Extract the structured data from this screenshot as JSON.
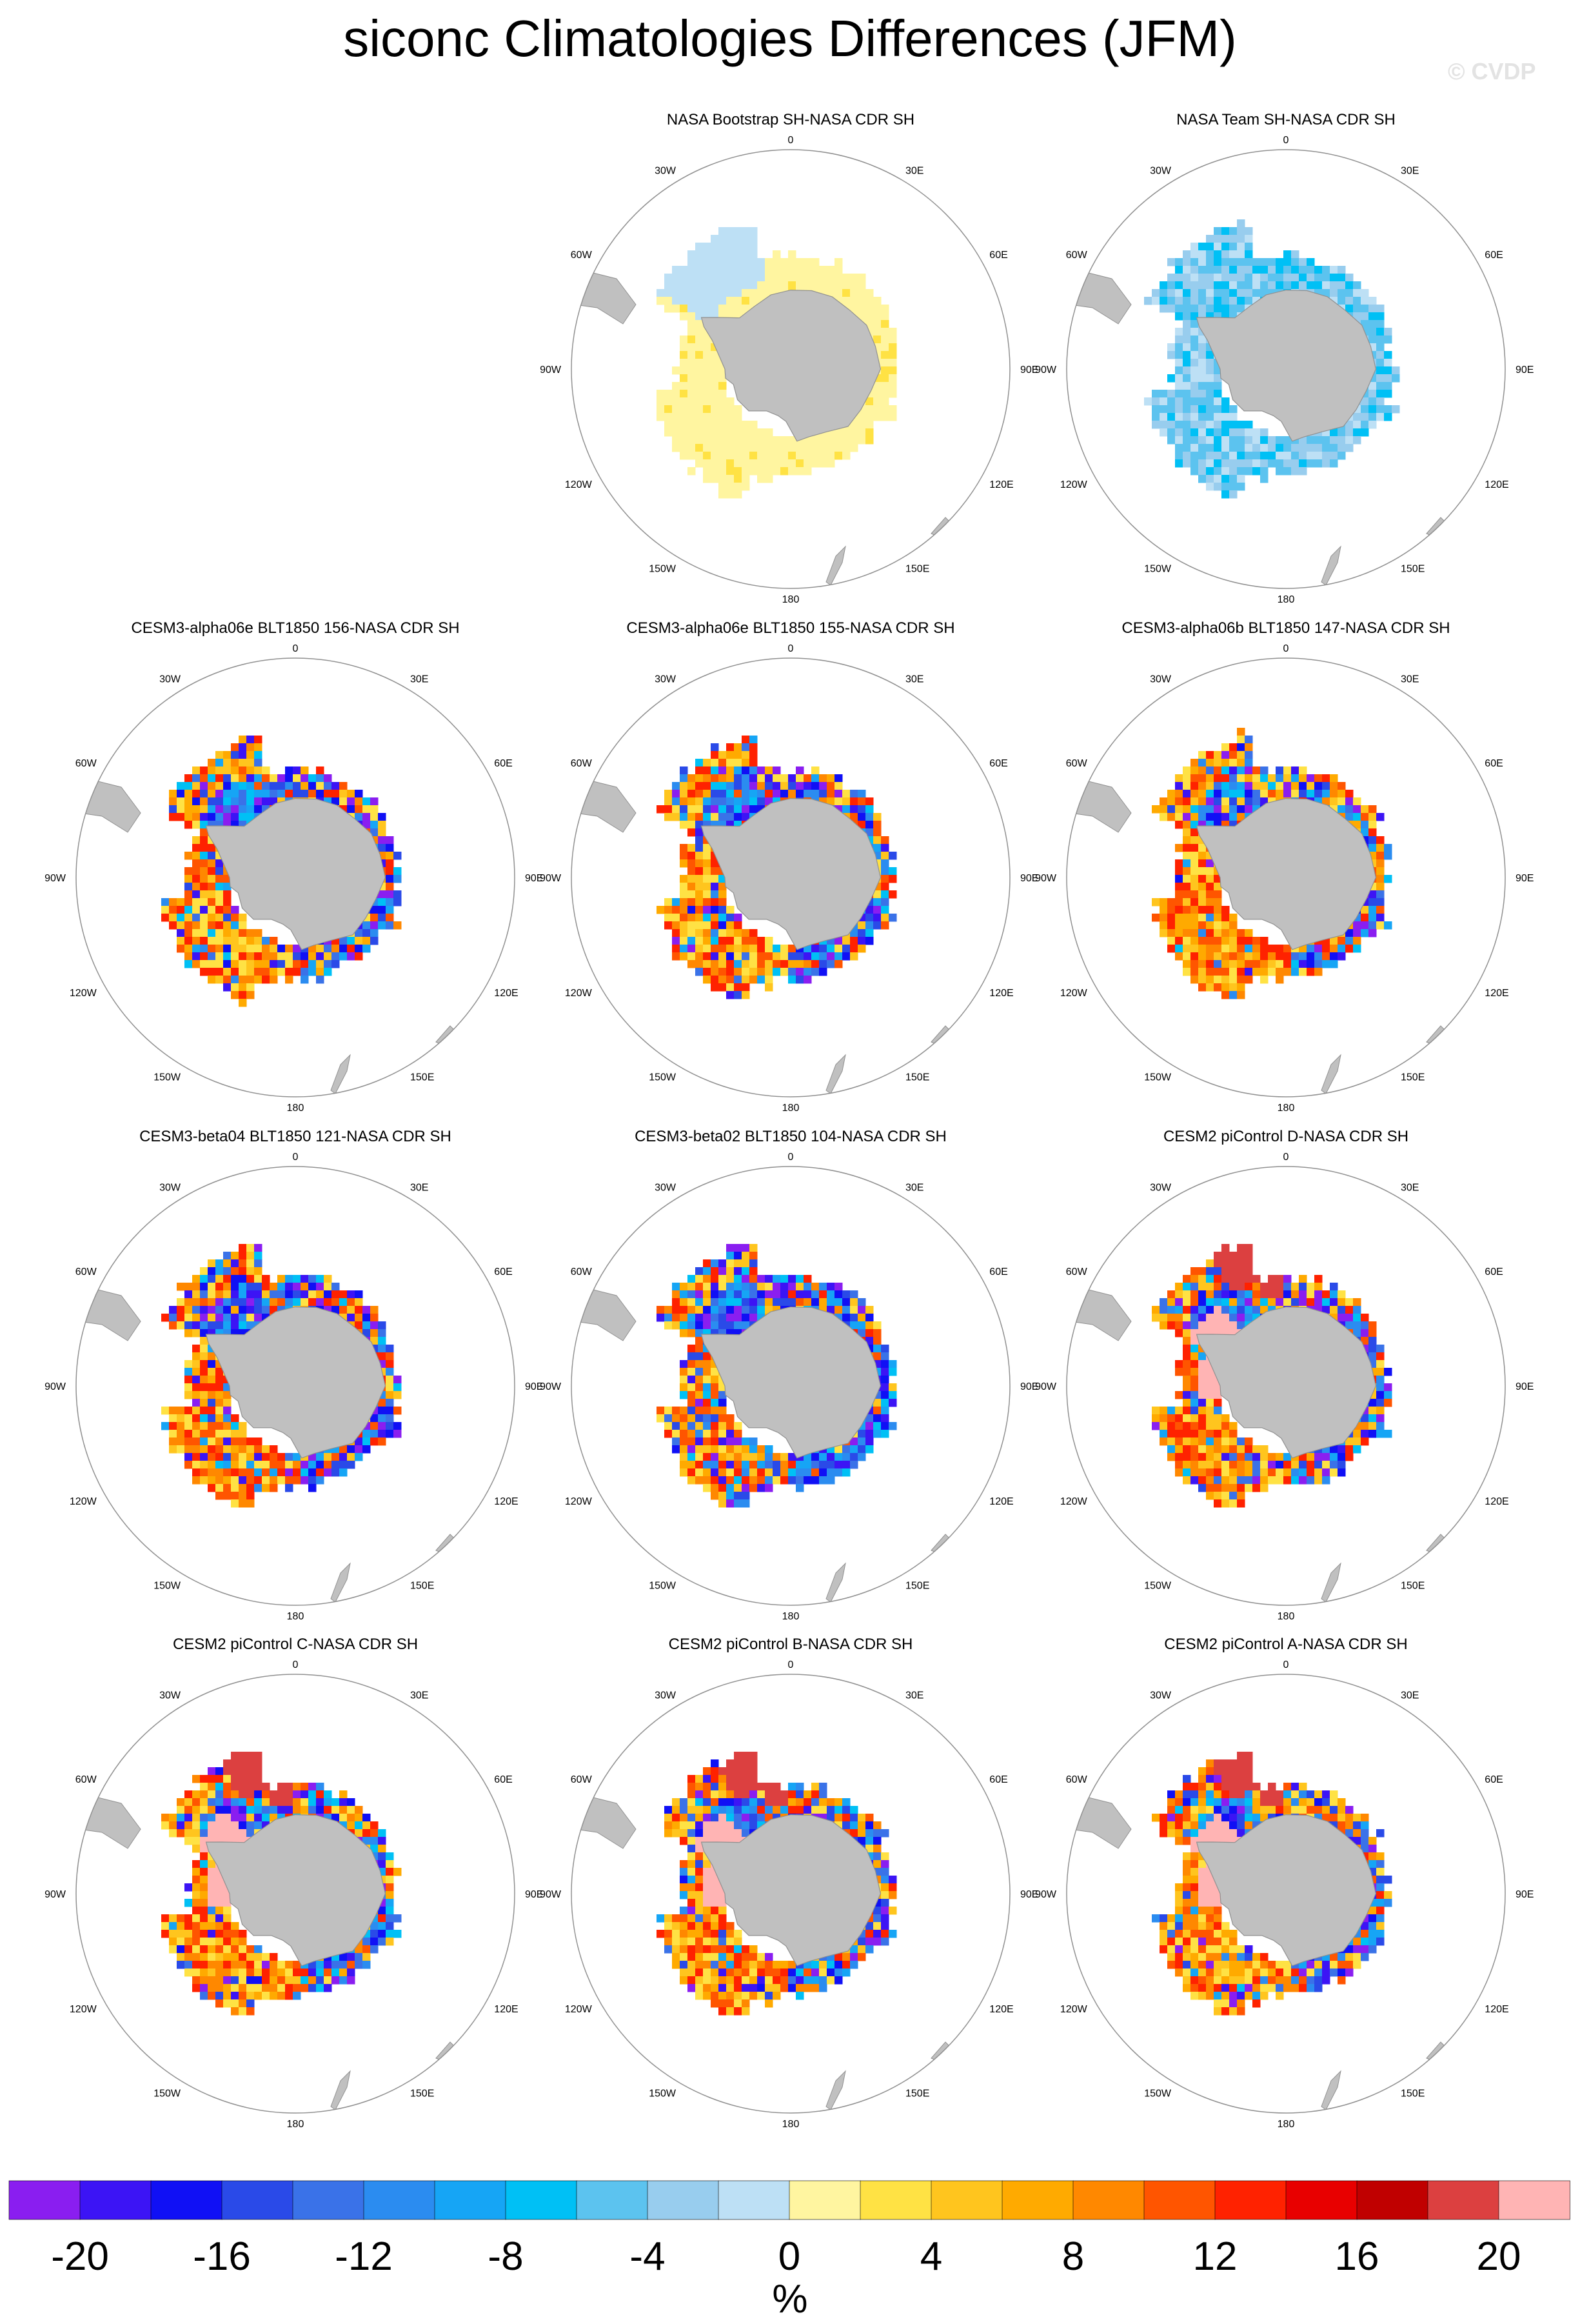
{
  "title": "siconc Climatologies Differences (JFM)",
  "watermark": "© CVDP",
  "longitude_labels": [
    "0",
    "30E",
    "60E",
    "90E",
    "120E",
    "150E",
    "180",
    "150W",
    "120W",
    "90W",
    "60W",
    "30W"
  ],
  "panels": [
    {
      "title": "NASA Bootstrap SH-NASA CDR SH",
      "pattern": "yellow"
    },
    {
      "title": "NASA Team SH-NASA CDR SH",
      "pattern": "blue"
    },
    {
      "title": "CESM3-alpha06e BLT1850 156-NASA CDR SH",
      "pattern": "mixed"
    },
    {
      "title": "CESM3-alpha06e BLT1850 155-NASA CDR SH",
      "pattern": "mixed"
    },
    {
      "title": "CESM3-alpha06b BLT1850 147-NASA CDR SH",
      "pattern": "mixed-red"
    },
    {
      "title": "CESM3-beta04 BLT1850 121-NASA CDR SH",
      "pattern": "mixed"
    },
    {
      "title": "CESM3-beta02 BLT1850 104-NASA CDR SH",
      "pattern": "mixed-blue"
    },
    {
      "title": "CESM2 piControl D-NASA CDR SH",
      "pattern": "mixed-pink"
    },
    {
      "title": "CESM2 piControl C-NASA CDR SH",
      "pattern": "mixed-pink"
    },
    {
      "title": "CESM2 piControl B-NASA CDR SH",
      "pattern": "mixed-pink"
    },
    {
      "title": "CESM2 piControl A-NASA CDR SH",
      "pattern": "mixed-pink"
    }
  ],
  "colorbar": {
    "colors": [
      "#8a1ef0",
      "#3c14f5",
      "#1010f5",
      "#2a4ae8",
      "#3a72e8",
      "#2b8cf0",
      "#16a5f5",
      "#00c0f5",
      "#5cc3ef",
      "#98cdee",
      "#bde0f5",
      "#fff5a0",
      "#ffe244",
      "#ffc51e",
      "#ffaa00",
      "#ff8800",
      "#ff5500",
      "#ff2200",
      "#e80000",
      "#c00000",
      "#dc4040",
      "#ffb4b4"
    ],
    "tick_labels": [
      "-20",
      "-16",
      "-12",
      "-8",
      "-4",
      "0",
      "4",
      "8",
      "12",
      "16",
      "20"
    ],
    "units": "%"
  },
  "colors": {
    "land": "#c0c0c0",
    "land_edge": "#909090",
    "circle_edge": "#909090"
  }
}
